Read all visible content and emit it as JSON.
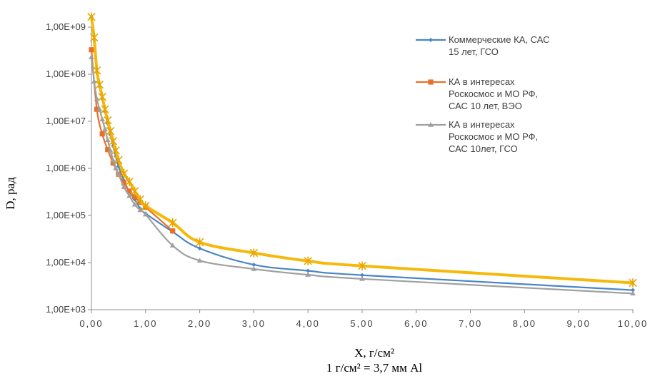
{
  "chart_data": {
    "type": "line",
    "title": "",
    "ylabel": "D, рад",
    "xlabel": "X, г/см²",
    "xlabel_note": "1 г/см² = 3,7 мм Al",
    "x_scale": "linear",
    "y_scale": "log",
    "xlim": [
      0,
      10
    ],
    "ylim": [
      1000,
      1000000000
    ],
    "x_ticks": [
      "0,00",
      "1,00",
      "2,00",
      "3,00",
      "4,00",
      "5,00",
      "6,00",
      "7,00",
      "8,00",
      "9,00",
      "10,00"
    ],
    "y_ticks": [
      "1,00E+03",
      "1,00E+04",
      "1,00E+05",
      "1,00E+06",
      "1,00E+07",
      "1,00E+08",
      "1,00E+09"
    ],
    "grid": false,
    "legend_position": "top-right",
    "series": [
      {
        "name": "Коммерческие КА, САС 15 лет, ГСО",
        "legend_lines": [
          "Коммерческие КА, САС",
          "15 лет, ГСО"
        ],
        "color": "#4a86c5",
        "marker": "diamond",
        "x": [
          0,
          0.05,
          0.1,
          0.15,
          0.2,
          0.25,
          0.3,
          0.35,
          0.4,
          0.45,
          0.5,
          0.6,
          0.7,
          0.8,
          0.9,
          1.0,
          1.5,
          2.0,
          3.0,
          4.0,
          5.0,
          10.0
        ],
        "y": [
          1600000000,
          550000000,
          110000000,
          55000000,
          30000000,
          16000000,
          9000000,
          5200000,
          3000000,
          1800000,
          1100000,
          550000,
          320000,
          220000,
          140000,
          110000,
          45000,
          20000,
          9000,
          6700,
          5400,
          2600
        ]
      },
      {
        "name": "КА в интересах Роскосмос и МО РФ, САС 10 лет, ВЭО",
        "legend_lines": [
          "КА в интересах",
          "Роскосмос и МО РФ,",
          "САС 10 лет, ВЭО"
        ],
        "color": "#e8712a",
        "marker": "square",
        "x": [
          0,
          0.1,
          0.2,
          0.3,
          0.4,
          0.5,
          0.6,
          0.7,
          0.8,
          0.9,
          1.0,
          1.5
        ],
        "y": [
          330000000,
          18000000,
          5400000,
          2500000,
          1300000,
          750000,
          490000,
          330000,
          250000,
          190000,
          150000,
          47000
        ]
      },
      {
        "name": "КА в интересах Роскосмос и МО РФ, САС 10лет, ГСО",
        "legend_lines": [
          "КА в интересах",
          "Роскосмос и МО РФ,",
          "САС 10лет, ГСО"
        ],
        "color": "#a0a0a0",
        "marker": "triangle",
        "x": [
          0,
          0.05,
          0.1,
          0.15,
          0.2,
          0.25,
          0.3,
          0.35,
          0.4,
          0.45,
          0.5,
          0.6,
          0.7,
          0.8,
          0.9,
          1.0,
          1.5,
          2.0,
          3.0,
          4.0,
          5.0,
          10.0
        ],
        "y": [
          230000000,
          70000000,
          30000000,
          18000000,
          11000000,
          6800000,
          4000000,
          2400000,
          1500000,
          1000000,
          750000,
          400000,
          260000,
          170000,
          130000,
          105000,
          23000,
          11000,
          7300,
          5500,
          4500,
          2200
        ]
      },
      {
        "name": "",
        "legend_lines": [],
        "color": "#f5b90c",
        "marker": "star",
        "x": [
          0,
          0.05,
          0.1,
          0.15,
          0.2,
          0.25,
          0.3,
          0.35,
          0.4,
          0.45,
          0.5,
          0.6,
          0.7,
          0.8,
          0.9,
          1.0,
          1.5,
          2.0,
          3.0,
          4.0,
          5.0,
          10.0
        ],
        "y": [
          1650000000,
          600000000,
          120000000,
          60000000,
          33000000,
          18000000,
          10500000,
          6200000,
          3800000,
          2400000,
          1500000,
          780000,
          520000,
          330000,
          220000,
          160000,
          70000,
          27000,
          16000,
          10800,
          8500,
          3700
        ]
      }
    ]
  }
}
